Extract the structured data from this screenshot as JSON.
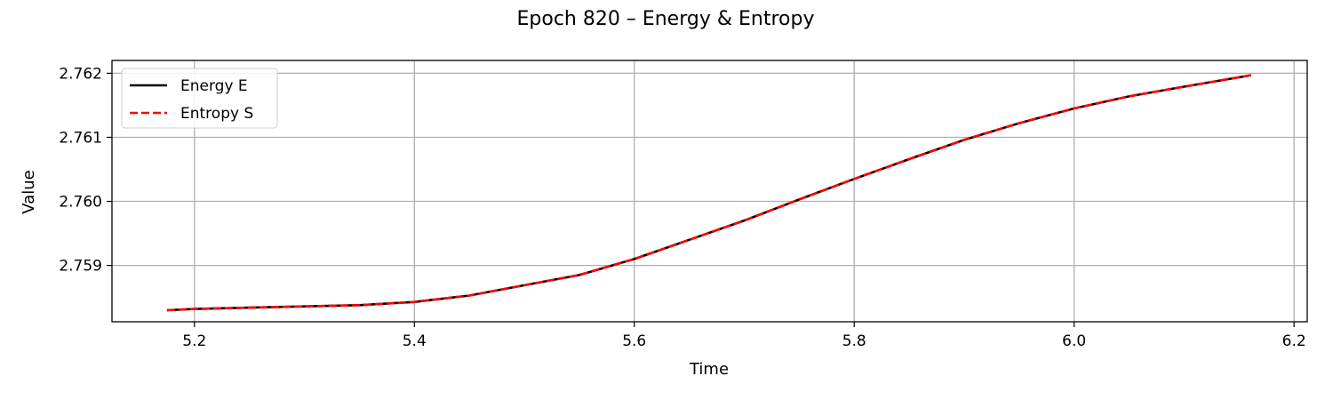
{
  "chart_data": {
    "type": "line",
    "title": "Epoch 820 – Energy & Entropy",
    "xlabel": "Time",
    "ylabel": "Value",
    "xlim": [
      5.125,
      6.212
    ],
    "ylim": [
      2.75812,
      2.7622
    ],
    "x_ticks": [
      5.2,
      5.4,
      5.6,
      5.8,
      6.0,
      6.2
    ],
    "x_tick_labels": [
      "5.2",
      "5.4",
      "5.6",
      "5.8",
      "6.0",
      "6.2"
    ],
    "y_ticks": [
      2.759,
      2.76,
      2.761,
      2.762
    ],
    "y_tick_labels": [
      "2.759",
      "2.760",
      "2.761",
      "2.762"
    ],
    "grid": true,
    "legend_position": "upper-left",
    "series": [
      {
        "name": "Energy E",
        "color": "#000000",
        "style": "solid",
        "x": [
          5.175,
          5.2,
          5.25,
          5.3,
          5.35,
          5.4,
          5.45,
          5.5,
          5.55,
          5.6,
          5.65,
          5.7,
          5.75,
          5.8,
          5.85,
          5.9,
          5.95,
          6.0,
          6.05,
          6.1,
          6.161
        ],
        "y": [
          2.7583,
          2.75832,
          2.75834,
          2.75836,
          2.75838,
          2.75843,
          2.75853,
          2.75869,
          2.75885,
          2.7591,
          2.7594,
          2.7597,
          2.76003,
          2.76035,
          2.76066,
          2.76096,
          2.76122,
          2.76145,
          2.76164,
          2.76179,
          2.76197
        ]
      },
      {
        "name": "Entropy S",
        "color": "#ff0000",
        "style": "dashed",
        "x": [
          5.175,
          5.2,
          5.25,
          5.3,
          5.35,
          5.4,
          5.45,
          5.5,
          5.55,
          5.6,
          5.65,
          5.7,
          5.75,
          5.8,
          5.85,
          5.9,
          5.95,
          6.0,
          6.05,
          6.1,
          6.161
        ],
        "y": [
          2.7583,
          2.75832,
          2.75834,
          2.75836,
          2.75838,
          2.75843,
          2.75853,
          2.75869,
          2.75885,
          2.7591,
          2.7594,
          2.7597,
          2.76003,
          2.76035,
          2.76066,
          2.76096,
          2.76122,
          2.76145,
          2.76164,
          2.76179,
          2.76197
        ]
      }
    ]
  }
}
